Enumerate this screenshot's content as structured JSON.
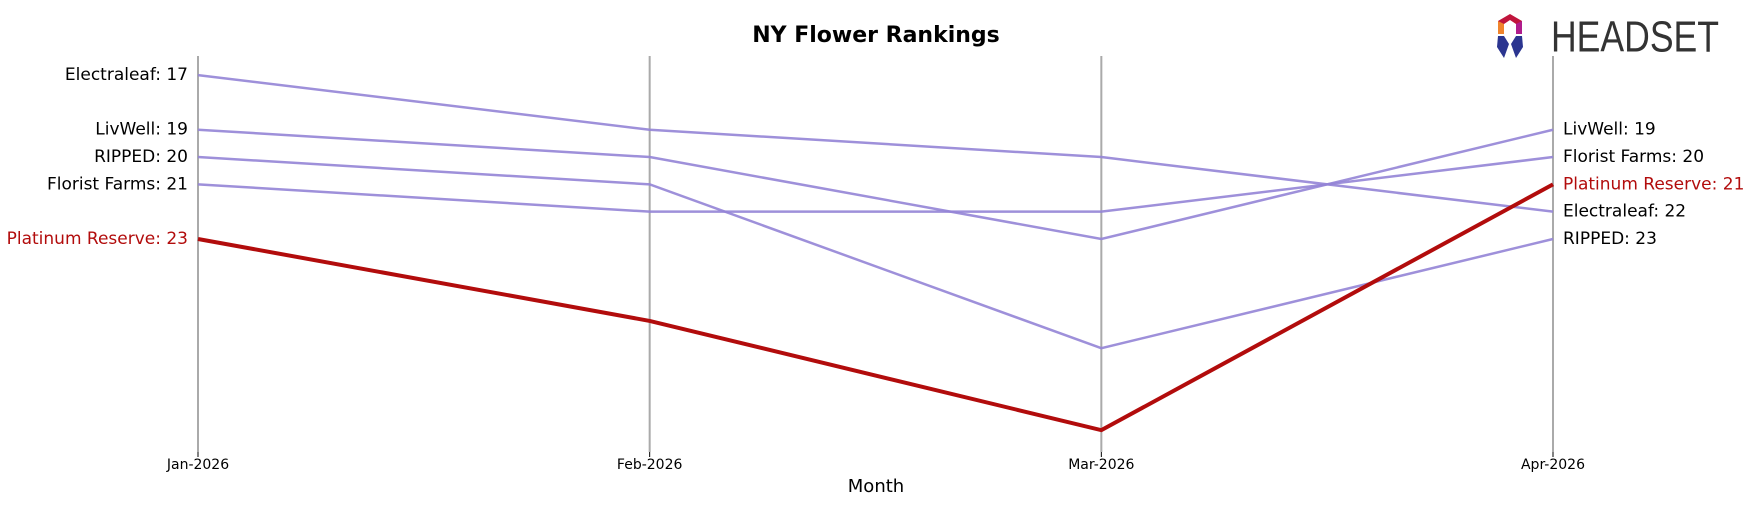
{
  "chart_data": {
    "type": "bump",
    "title": "NY Flower Rankings",
    "x_label": "Month",
    "logo_text": "HEADSET",
    "categories": [
      "Jan-2026",
      "Feb-2026",
      "Mar-2026",
      "Apr-2026"
    ],
    "ylim": [
      30.8,
      16.3
    ],
    "highlight": "Platinum Reserve",
    "grid": true,
    "series": [
      {
        "name": "Electraleaf",
        "color": "#9384d6",
        "values": [
          17,
          19,
          20,
          22
        ],
        "value_labels": [
          "Electraleaf: 17",
          null,
          null,
          "Electraleaf: 22"
        ]
      },
      {
        "name": "LivWell",
        "color": "#9384d6",
        "values": [
          19,
          20,
          23,
          19
        ],
        "value_labels": [
          "LivWell: 19",
          null,
          null,
          "LivWell: 19"
        ]
      },
      {
        "name": "RIPPED",
        "color": "#9384d6",
        "values": [
          20,
          21,
          27,
          23
        ],
        "value_labels": [
          "RIPPED: 20",
          null,
          null,
          "RIPPED: 23"
        ]
      },
      {
        "name": "Florist Farms",
        "color": "#9384d6",
        "values": [
          21,
          22,
          22,
          20
        ],
        "value_labels": [
          "Florist Farms: 21",
          null,
          null,
          "Florist Farms: 20"
        ]
      },
      {
        "name": "Platinum Reserve",
        "color": "#b20c0c",
        "values": [
          23,
          26,
          30,
          21
        ],
        "value_labels": [
          "Platinum Reserve: 23",
          null,
          null,
          "Platinum Reserve: 21"
        ]
      }
    ]
  }
}
